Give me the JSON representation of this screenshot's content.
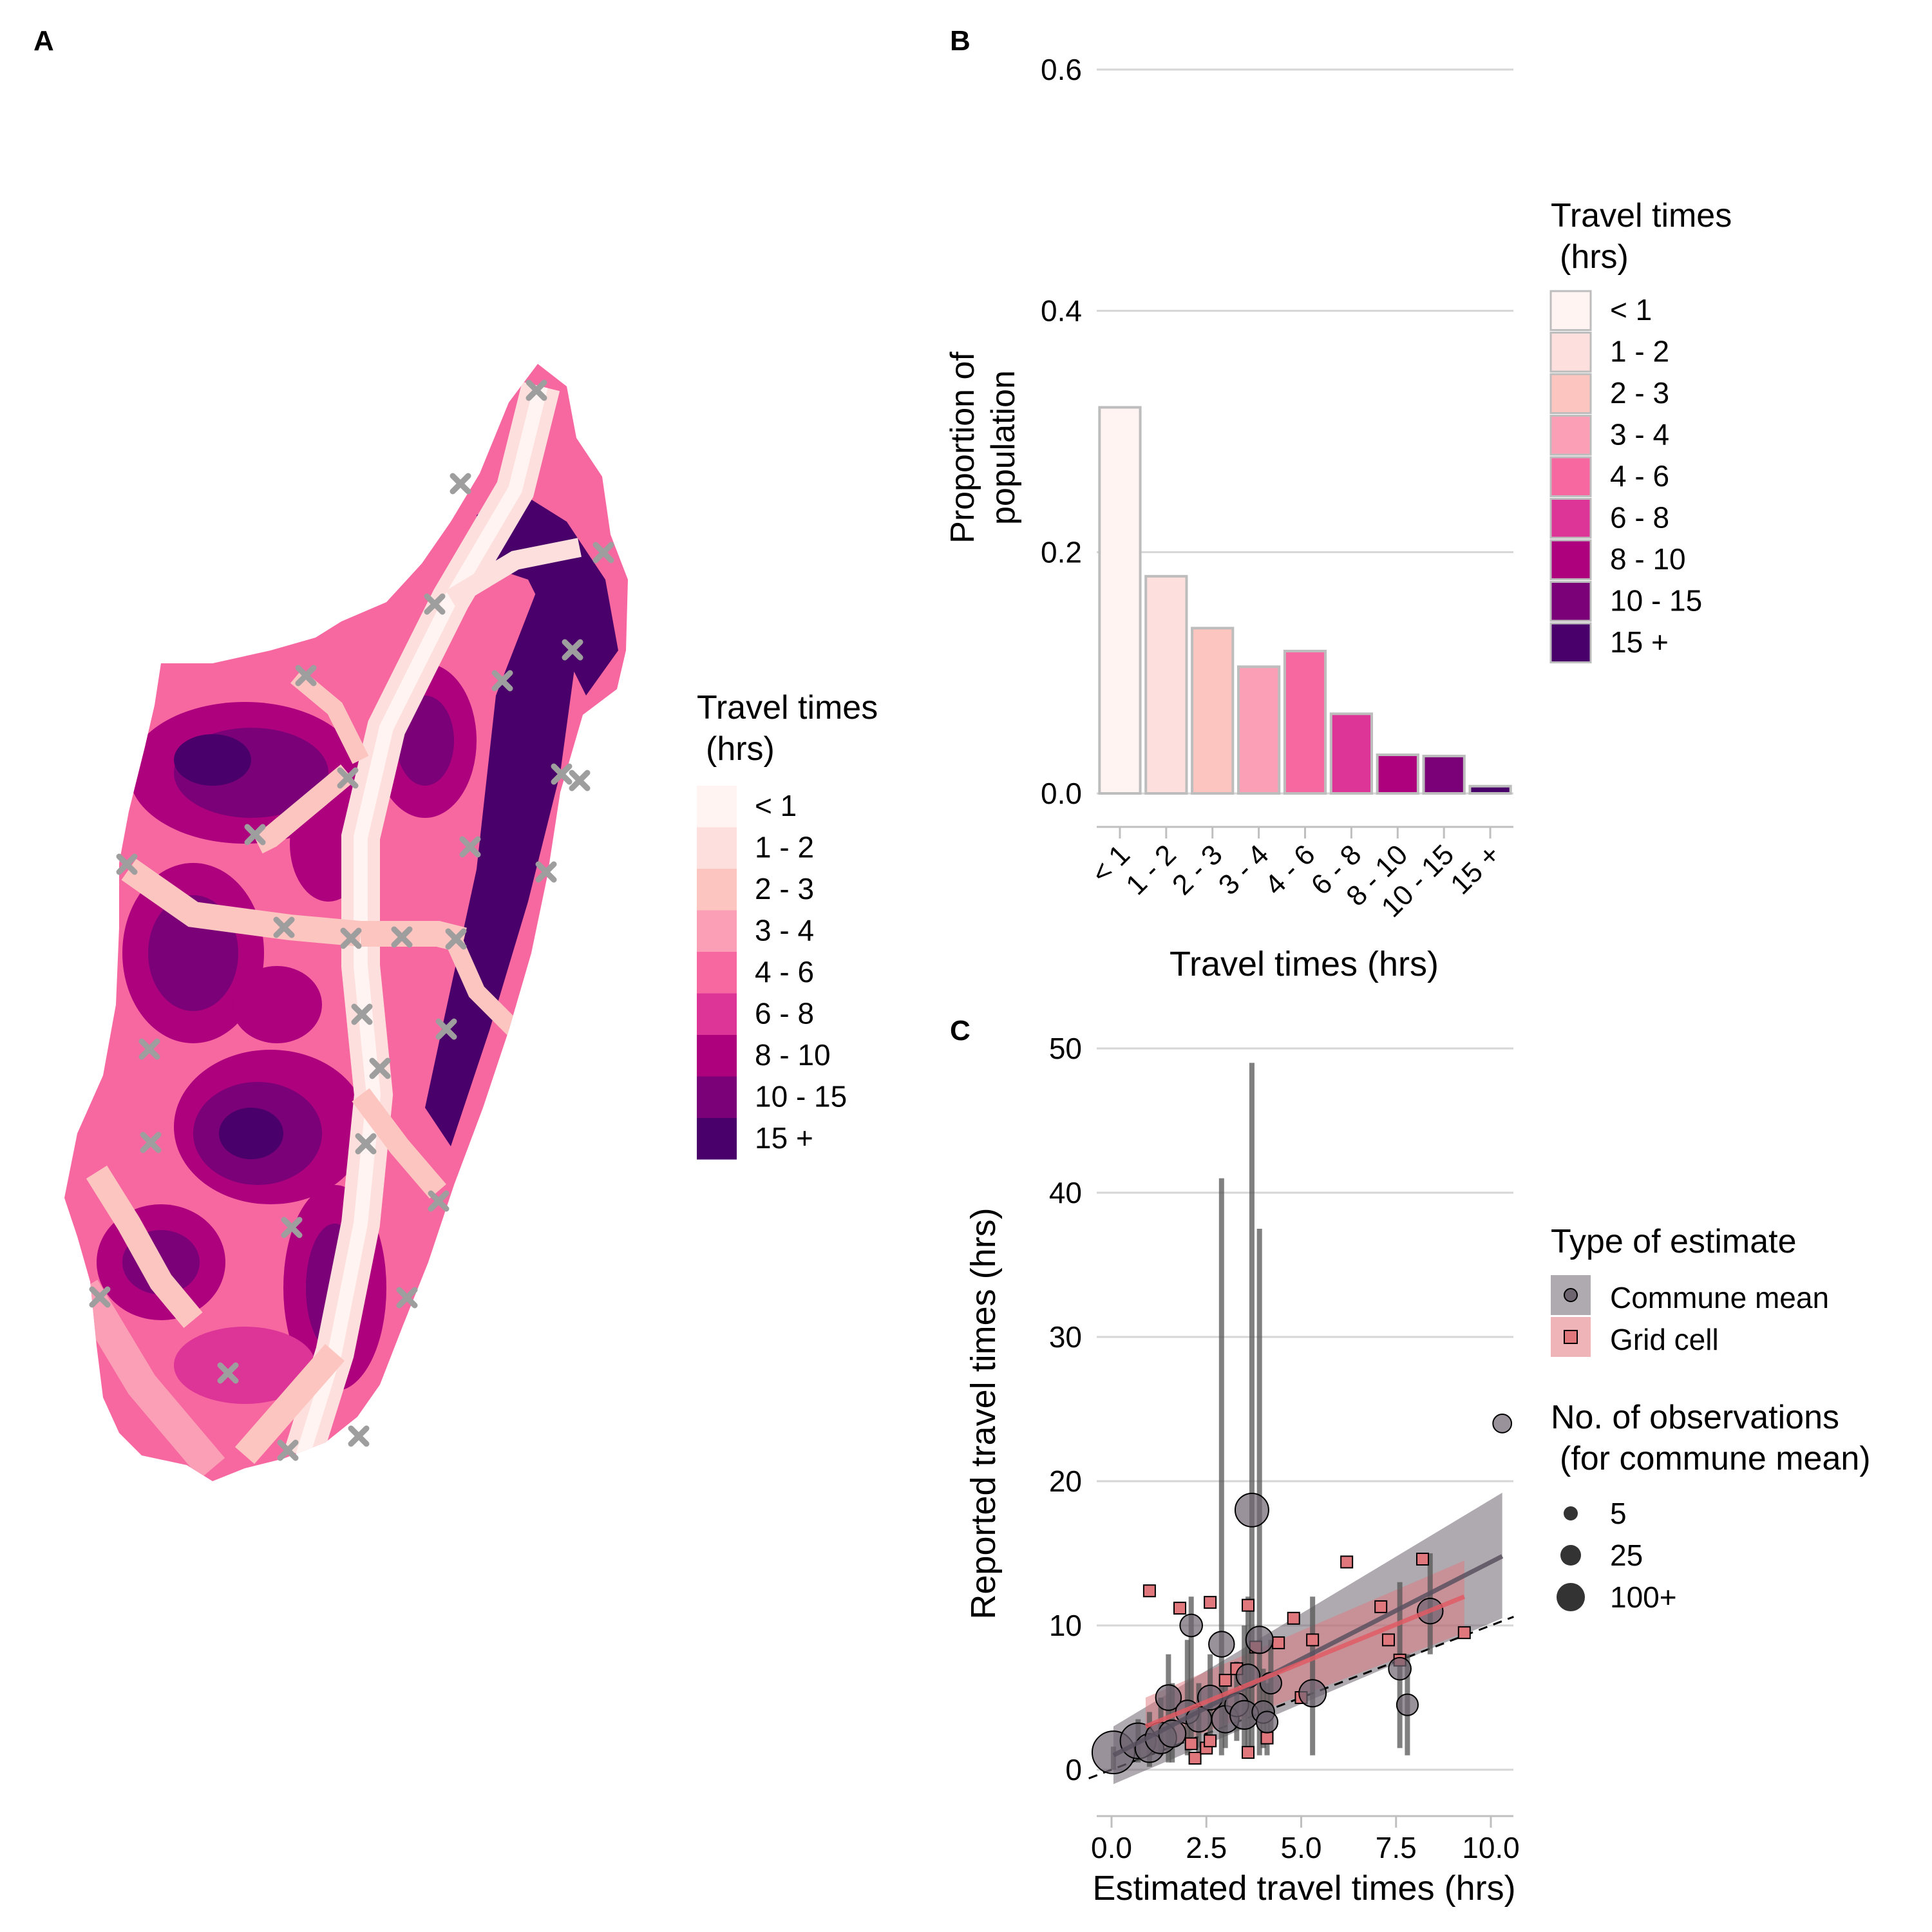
{
  "panel_labels": {
    "a": "A",
    "b": "B",
    "c": "C"
  },
  "map_legend": {
    "title_line1": "Travel times",
    "title_line2": "(hrs)",
    "items": [
      "< 1",
      "1 - 2",
      "2 - 3",
      "3 - 4",
      "4 - 6",
      "6 - 8",
      "8 - 10",
      "10 - 15",
      "15 +"
    ],
    "colors": [
      "#fff4f2",
      "#fde0dd",
      "#fcc5c0",
      "#fa9fb5",
      "#f768a1",
      "#dd3497",
      "#ae017e",
      "#7a0177",
      "#49006a"
    ]
  },
  "sites_marker": "x-marker",
  "chart_data": [
    {
      "panel": "B",
      "type": "bar",
      "categories": [
        "< 1",
        "1 - 2",
        "2 - 3",
        "3 - 4",
        "4 - 6",
        "6 - 8",
        "8 - 10",
        "10 - 15",
        "15 +"
      ],
      "values": [
        0.32,
        0.18,
        0.137,
        0.105,
        0.118,
        0.066,
        0.032,
        0.031,
        0.006
      ],
      "colors": [
        "#fff4f2",
        "#fde0dd",
        "#fcc5c0",
        "#fa9fb5",
        "#f768a1",
        "#dd3497",
        "#ae017e",
        "#7a0177",
        "#49006a"
      ],
      "xlabel": "Travel times (hrs)",
      "ylabel_line1": "Proportion of",
      "ylabel_line2": "population",
      "ylim": [
        0,
        0.6
      ],
      "yticks": [
        "0.0",
        "0.2",
        "0.4",
        "0.6"
      ],
      "grid": true,
      "legend": {
        "title_line1": "Travel times",
        "title_line2": "(hrs)",
        "items": [
          "< 1",
          "1 - 2",
          "2 - 3",
          "3 - 4",
          "4 - 6",
          "6 - 8",
          "8 - 10",
          "10 - 15",
          "15 +"
        ],
        "placement": "right"
      }
    },
    {
      "panel": "C",
      "type": "scatter",
      "xlabel": "Estimated travel times (hrs)",
      "ylabel": "Reported travel times (hrs)",
      "xlim": [
        0,
        10.5
      ],
      "ylim": [
        0,
        50
      ],
      "xticks": [
        "0.0",
        "2.5",
        "5.0",
        "7.5",
        "10.0"
      ],
      "yticks": [
        "0",
        "10",
        "20",
        "30",
        "40",
        "50"
      ],
      "grid": true,
      "colors": {
        "commune": "#6e6470",
        "grid": "#e0777d"
      },
      "series": [
        {
          "name": "Commune mean",
          "points": [
            {
              "x": 0.05,
              "y": 1.2,
              "n": 100,
              "lo": 0,
              "hi": 1.6
            },
            {
              "x": 0.7,
              "y": 2.0,
              "n": 60,
              "lo": 0.5,
              "hi": 3.5
            },
            {
              "x": 1.0,
              "y": 1.5,
              "n": 30,
              "lo": 0.2,
              "hi": 4.0
            },
            {
              "x": 1.3,
              "y": 2.2,
              "n": 40,
              "lo": 1.0,
              "hi": 5.0
            },
            {
              "x": 1.5,
              "y": 5.0,
              "n": 20,
              "lo": 0.5,
              "hi": 8.0
            },
            {
              "x": 1.6,
              "y": 2.5,
              "n": 25,
              "lo": 0.5,
              "hi": 6.0
            },
            {
              "x": 2.0,
              "y": 4.0,
              "n": 15,
              "lo": 1.0,
              "hi": 9.0
            },
            {
              "x": 2.1,
              "y": 10.0,
              "n": 12,
              "lo": 2.0,
              "hi": 12.0
            },
            {
              "x": 2.3,
              "y": 3.5,
              "n": 20,
              "lo": 1.0,
              "hi": 6.0
            },
            {
              "x": 2.6,
              "y": 5.0,
              "n": 18,
              "lo": 2.0,
              "hi": 8.0
            },
            {
              "x": 2.9,
              "y": 8.7,
              "n": 20,
              "lo": 1.0,
              "hi": 41.0
            },
            {
              "x": 3.0,
              "y": 3.5,
              "n": 25,
              "lo": 1.5,
              "hi": 6.5
            },
            {
              "x": 3.3,
              "y": 4.5,
              "n": 15,
              "lo": 2.0,
              "hi": 7.5
            },
            {
              "x": 3.5,
              "y": 3.8,
              "n": 30,
              "lo": 1.0,
              "hi": 10.0
            },
            {
              "x": 3.6,
              "y": 6.5,
              "n": 15,
              "lo": 1.0,
              "hi": 12.0
            },
            {
              "x": 3.7,
              "y": 18.0,
              "n": 50,
              "lo": 1.0,
              "hi": 49.0
            },
            {
              "x": 3.9,
              "y": 9.0,
              "n": 25,
              "lo": 1.0,
              "hi": 37.5
            },
            {
              "x": 4.0,
              "y": 4.0,
              "n": 12,
              "lo": 1.5,
              "hi": 7.0
            },
            {
              "x": 4.1,
              "y": 3.3,
              "n": 10,
              "lo": 1.0,
              "hi": 6.0
            },
            {
              "x": 4.2,
              "y": 6.0,
              "n": 10,
              "lo": 2.5,
              "hi": 9.0
            },
            {
              "x": 5.3,
              "y": 5.3,
              "n": 25,
              "lo": 1.0,
              "hi": 12.0
            },
            {
              "x": 7.6,
              "y": 7.0,
              "n": 12,
              "lo": 1.5,
              "hi": 13.0
            },
            {
              "x": 7.8,
              "y": 4.5,
              "n": 10,
              "lo": 1.0,
              "hi": 8.0
            },
            {
              "x": 8.4,
              "y": 11.0,
              "n": 20,
              "lo": 8.0,
              "hi": 15.0
            },
            {
              "x": 10.3,
              "y": 24.0,
              "n": 5,
              "lo": null,
              "hi": null
            }
          ],
          "fit": {
            "x0": 0.05,
            "y0": 1.0,
            "x1": 10.3,
            "y1": 14.8,
            "band_lo_start": -1.0,
            "band_hi_start": 3.0,
            "band_lo_end": 10.5,
            "band_hi_end": 19.2
          }
        },
        {
          "name": "Grid cell",
          "points": [
            {
              "x": 1.0,
              "y": 12.4
            },
            {
              "x": 1.8,
              "y": 11.2
            },
            {
              "x": 2.1,
              "y": 1.8
            },
            {
              "x": 2.2,
              "y": 0.8
            },
            {
              "x": 2.5,
              "y": 1.5
            },
            {
              "x": 2.6,
              "y": 11.6
            },
            {
              "x": 2.6,
              "y": 2.0
            },
            {
              "x": 3.0,
              "y": 6.2
            },
            {
              "x": 3.3,
              "y": 7.0
            },
            {
              "x": 3.6,
              "y": 11.4
            },
            {
              "x": 3.6,
              "y": 1.2
            },
            {
              "x": 3.8,
              "y": 8.5
            },
            {
              "x": 4.1,
              "y": 2.2
            },
            {
              "x": 4.4,
              "y": 8.8
            },
            {
              "x": 4.8,
              "y": 10.5
            },
            {
              "x": 5.0,
              "y": 5.0
            },
            {
              "x": 5.3,
              "y": 9.0
            },
            {
              "x": 6.2,
              "y": 14.4
            },
            {
              "x": 7.1,
              "y": 11.3
            },
            {
              "x": 7.3,
              "y": 9.0
            },
            {
              "x": 7.6,
              "y": 7.6
            },
            {
              "x": 8.2,
              "y": 14.6
            },
            {
              "x": 9.3,
              "y": 9.5
            }
          ],
          "fit": {
            "x0": 0.9,
            "y0": 3.0,
            "x1": 9.3,
            "y1": 12.0,
            "band_lo_start": 1.0,
            "band_hi_start": 5.0,
            "band_lo_end": 9.5,
            "band_hi_end": 14.5
          }
        }
      ],
      "identity_line": "dashed",
      "legend": {
        "type_title": "Type of estimate",
        "type_items": [
          "Commune mean",
          "Grid cell"
        ],
        "size_title_line1": "No. of observations",
        "size_title_line2": "(for commune mean)",
        "size_items": [
          "5",
          "25",
          "100+"
        ],
        "placement": "right"
      }
    }
  ]
}
